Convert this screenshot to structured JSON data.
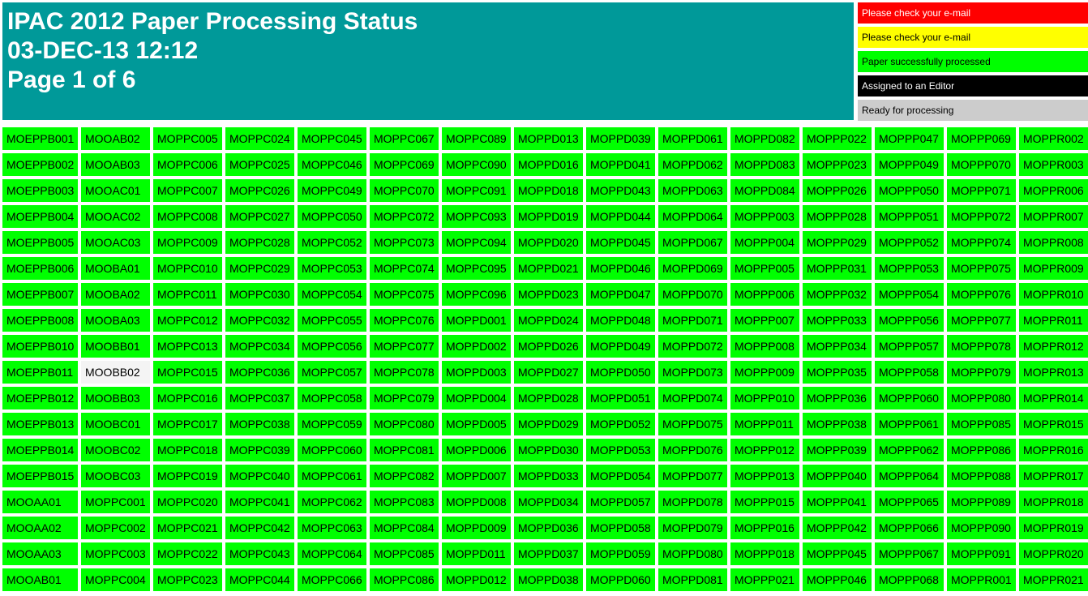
{
  "header": {
    "title": "IPAC 2012 Paper Processing Status",
    "timestamp": "03-DEC-13 12:12",
    "page": "Page 1 of 6",
    "color": "#009999"
  },
  "legend": [
    {
      "label": "Please check your e-mail",
      "color": "#ff0000",
      "text_color": "#ffffff"
    },
    {
      "label": "Please check your e-mail",
      "color": "#ffff00",
      "text_color": "#000000"
    },
    {
      "label": "Paper successfully processed",
      "color": "#00ff00",
      "text_color": "#000000"
    },
    {
      "label": "Assigned to an Editor",
      "color": "#000000",
      "text_color": "#ffffff"
    },
    {
      "label": "Ready for processing",
      "color": "#cccccc",
      "text_color": "#000000"
    }
  ],
  "grid": {
    "cell_color": "#00ff00",
    "highlight": {
      "column": 1,
      "row": 9,
      "color": "#f4f4f4"
    },
    "columns": [
      [
        "MOEPPB001",
        "MOEPPB002",
        "MOEPPB003",
        "MOEPPB004",
        "MOEPPB005",
        "MOEPPB006",
        "MOEPPB007",
        "MOEPPB008",
        "MOEPPB010",
        "MOEPPB011",
        "MOEPPB012",
        "MOEPPB013",
        "MOEPPB014",
        "MOEPPB015",
        "MOOAA01",
        "MOOAA02",
        "MOOAA03",
        "MOOAB01"
      ],
      [
        "MOOAB02",
        "MOOAB03",
        "MOOAC01",
        "MOOAC02",
        "MOOAC03",
        "MOOBA01",
        "MOOBA02",
        "MOOBA03",
        "MOOBB01",
        "MOOBB02",
        "MOOBB03",
        "MOOBC01",
        "MOOBC02",
        "MOOBC03",
        "MOPPC001",
        "MOPPC002",
        "MOPPC003",
        "MOPPC004"
      ],
      [
        "MOPPC005",
        "MOPPC006",
        "MOPPC007",
        "MOPPC008",
        "MOPPC009",
        "MOPPC010",
        "MOPPC011",
        "MOPPC012",
        "MOPPC013",
        "MOPPC015",
        "MOPPC016",
        "MOPPC017",
        "MOPPC018",
        "MOPPC019",
        "MOPPC020",
        "MOPPC021",
        "MOPPC022",
        "MOPPC023"
      ],
      [
        "MOPPC024",
        "MOPPC025",
        "MOPPC026",
        "MOPPC027",
        "MOPPC028",
        "MOPPC029",
        "MOPPC030",
        "MOPPC032",
        "MOPPC034",
        "MOPPC036",
        "MOPPC037",
        "MOPPC038",
        "MOPPC039",
        "MOPPC040",
        "MOPPC041",
        "MOPPC042",
        "MOPPC043",
        "MOPPC044"
      ],
      [
        "MOPPC045",
        "MOPPC046",
        "MOPPC049",
        "MOPPC050",
        "MOPPC052",
        "MOPPC053",
        "MOPPC054",
        "MOPPC055",
        "MOPPC056",
        "MOPPC057",
        "MOPPC058",
        "MOPPC059",
        "MOPPC060",
        "MOPPC061",
        "MOPPC062",
        "MOPPC063",
        "MOPPC064",
        "MOPPC066"
      ],
      [
        "MOPPC067",
        "MOPPC069",
        "MOPPC070",
        "MOPPC072",
        "MOPPC073",
        "MOPPC074",
        "MOPPC075",
        "MOPPC076",
        "MOPPC077",
        "MOPPC078",
        "MOPPC079",
        "MOPPC080",
        "MOPPC081",
        "MOPPC082",
        "MOPPC083",
        "MOPPC084",
        "MOPPC085",
        "MOPPC086"
      ],
      [
        "MOPPC089",
        "MOPPC090",
        "MOPPC091",
        "MOPPC093",
        "MOPPC094",
        "MOPPC095",
        "MOPPC096",
        "MOPPD001",
        "MOPPD002",
        "MOPPD003",
        "MOPPD004",
        "MOPPD005",
        "MOPPD006",
        "MOPPD007",
        "MOPPD008",
        "MOPPD009",
        "MOPPD011",
        "MOPPD012"
      ],
      [
        "MOPPD013",
        "MOPPD016",
        "MOPPD018",
        "MOPPD019",
        "MOPPD020",
        "MOPPD021",
        "MOPPD023",
        "MOPPD024",
        "MOPPD026",
        "MOPPD027",
        "MOPPD028",
        "MOPPD029",
        "MOPPD030",
        "MOPPD033",
        "MOPPD034",
        "MOPPD036",
        "MOPPD037",
        "MOPPD038"
      ],
      [
        "MOPPD039",
        "MOPPD041",
        "MOPPD043",
        "MOPPD044",
        "MOPPD045",
        "MOPPD046",
        "MOPPD047",
        "MOPPD048",
        "MOPPD049",
        "MOPPD050",
        "MOPPD051",
        "MOPPD052",
        "MOPPD053",
        "MOPPD054",
        "MOPPD057",
        "MOPPD058",
        "MOPPD059",
        "MOPPD060"
      ],
      [
        "MOPPD061",
        "MOPPD062",
        "MOPPD063",
        "MOPPD064",
        "MOPPD067",
        "MOPPD069",
        "MOPPD070",
        "MOPPD071",
        "MOPPD072",
        "MOPPD073",
        "MOPPD074",
        "MOPPD075",
        "MOPPD076",
        "MOPPD077",
        "MOPPD078",
        "MOPPD079",
        "MOPPD080",
        "MOPPD081"
      ],
      [
        "MOPPD082",
        "MOPPD083",
        "MOPPD084",
        "MOPPP003",
        "MOPPP004",
        "MOPPP005",
        "MOPPP006",
        "MOPPP007",
        "MOPPP008",
        "MOPPP009",
        "MOPPP010",
        "MOPPP011",
        "MOPPP012",
        "MOPPP013",
        "MOPPP015",
        "MOPPP016",
        "MOPPP018",
        "MOPPP021"
      ],
      [
        "MOPPP022",
        "MOPPP023",
        "MOPPP026",
        "MOPPP028",
        "MOPPP029",
        "MOPPP031",
        "MOPPP032",
        "MOPPP033",
        "MOPPP034",
        "MOPPP035",
        "MOPPP036",
        "MOPPP038",
        "MOPPP039",
        "MOPPP040",
        "MOPPP041",
        "MOPPP042",
        "MOPPP045",
        "MOPPP046"
      ],
      [
        "MOPPP047",
        "MOPPP049",
        "MOPPP050",
        "MOPPP051",
        "MOPPP052",
        "MOPPP053",
        "MOPPP054",
        "MOPPP056",
        "MOPPP057",
        "MOPPP058",
        "MOPPP060",
        "MOPPP061",
        "MOPPP062",
        "MOPPP064",
        "MOPPP065",
        "MOPPP066",
        "MOPPP067",
        "MOPPP068"
      ],
      [
        "MOPPP069",
        "MOPPP070",
        "MOPPP071",
        "MOPPP072",
        "MOPPP074",
        "MOPPP075",
        "MOPPP076",
        "MOPPP077",
        "MOPPP078",
        "MOPPP079",
        "MOPPP080",
        "MOPPP085",
        "MOPPP086",
        "MOPPP088",
        "MOPPP089",
        "MOPPP090",
        "MOPPP091",
        "MOPPR001"
      ],
      [
        "MOPPR002",
        "MOPPR003",
        "MOPPR006",
        "MOPPR007",
        "MOPPR008",
        "MOPPR009",
        "MOPPR010",
        "MOPPR011",
        "MOPPR012",
        "MOPPR013",
        "MOPPR014",
        "MOPPR015",
        "MOPPR016",
        "MOPPR017",
        "MOPPR018",
        "MOPPR019",
        "MOPPR020",
        "MOPPR021"
      ]
    ]
  }
}
